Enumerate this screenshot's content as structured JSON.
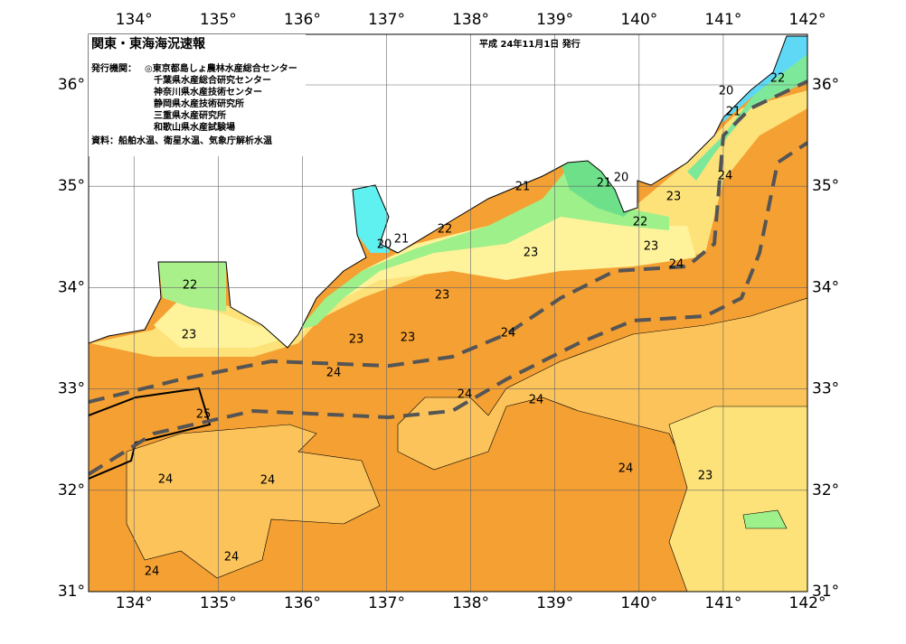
{
  "header": {
    "title": "関東・東海海況速報",
    "date": "平成 24年11月1日 発行",
    "issuer_label": "発行機関：",
    "issuers": [
      "◎東京都島しょ農林水産総合センター",
      "千葉県水産総合研究センター",
      "神奈川県水産技術センター",
      "静岡県水産技術研究所",
      "三重県水産研究所",
      "和歌山県水産試験場"
    ],
    "source": "資料：船舶水温、衛星水温、気象庁解析水温"
  },
  "map": {
    "lon_ticks": [
      {
        "value": 134,
        "label": "134°"
      },
      {
        "value": 135,
        "label": "135°"
      },
      {
        "value": 136,
        "label": "136°"
      },
      {
        "value": 137,
        "label": "137°"
      },
      {
        "value": 138,
        "label": "138°"
      },
      {
        "value": 139,
        "label": "139°"
      },
      {
        "value": 140,
        "label": "140°"
      },
      {
        "value": 141,
        "label": "141°"
      },
      {
        "value": 142,
        "label": "142°"
      }
    ],
    "lat_ticks": [
      {
        "value": 31,
        "label": "31°"
      },
      {
        "value": 32,
        "label": "32°"
      },
      {
        "value": 33,
        "label": "33°"
      },
      {
        "value": 34,
        "label": "34°"
      },
      {
        "value": 35,
        "label": "35°"
      },
      {
        "value": 36,
        "label": "36°"
      }
    ],
    "contour_labels": [
      "22",
      "20",
      "21",
      "24",
      "21",
      "21",
      "20",
      "23",
      "22",
      "22",
      "20",
      "21",
      "23",
      "23",
      "24",
      "22",
      "23",
      "24",
      "23",
      "23",
      "23",
      "24",
      "24",
      "24",
      "25",
      "24",
      "23",
      "24",
      "24",
      "24",
      "24"
    ]
  }
}
